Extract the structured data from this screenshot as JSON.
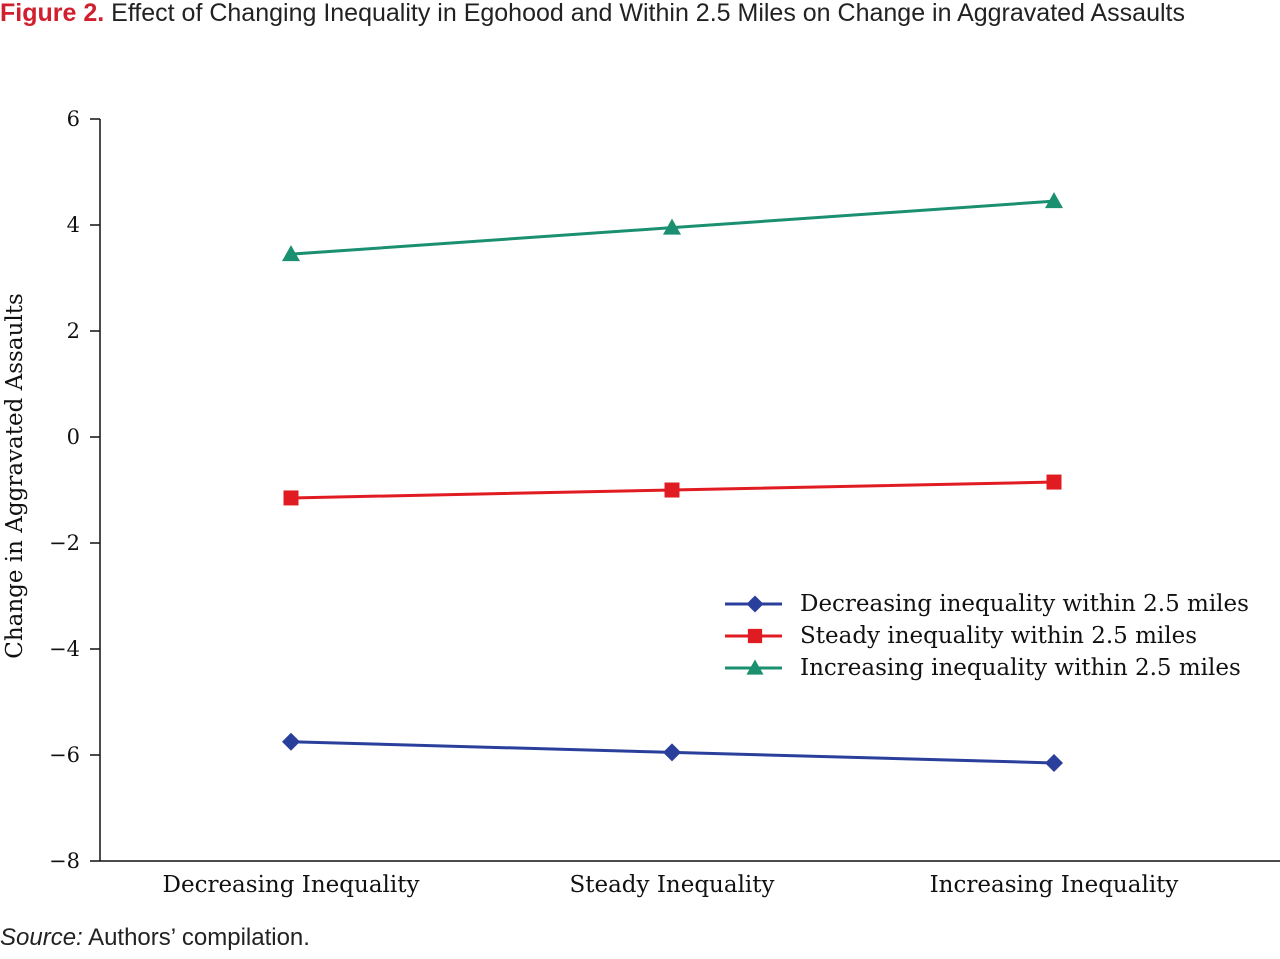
{
  "figure": {
    "label": "Figure 2.",
    "title": "Effect of Changing Inequality in Egohood and Within 2.5 Miles on Change in Aggravated Assaults",
    "source_label": "Source:",
    "source_text": "Authors’ compilation."
  },
  "colors": {
    "figure_label": "#d0202e",
    "decreasing": "#2a3f9c",
    "steady": "#e01b22",
    "increasing": "#1a9070"
  },
  "chart_data": {
    "type": "line",
    "title": "",
    "xlabel": "",
    "ylabel": "Change in Aggravated Assaults",
    "categories": [
      "Decreasing Inequality",
      "Steady Inequality",
      "Increasing Inequality"
    ],
    "ylim": [
      -8,
      6
    ],
    "yticks": [
      6,
      4,
      2,
      0,
      -2,
      -4,
      -6,
      -8
    ],
    "ytick_labels": [
      "6",
      "4",
      "2",
      "0",
      "−2",
      "−4",
      "−6",
      "−8"
    ],
    "grid": false,
    "legend_position": "center-right",
    "series": [
      {
        "name": "Decreasing inequality within 2.5 miles",
        "marker": "diamond",
        "color": "#2a3f9c",
        "values": [
          -5.75,
          -5.95,
          -6.15
        ]
      },
      {
        "name": "Steady inequality within 2.5 miles",
        "marker": "square",
        "color": "#e01b22",
        "values": [
          -1.15,
          -1.0,
          -0.85
        ]
      },
      {
        "name": "Increasing inequality within 2.5 miles",
        "marker": "triangle",
        "color": "#1a9070",
        "values": [
          3.45,
          3.95,
          4.45
        ]
      }
    ]
  }
}
